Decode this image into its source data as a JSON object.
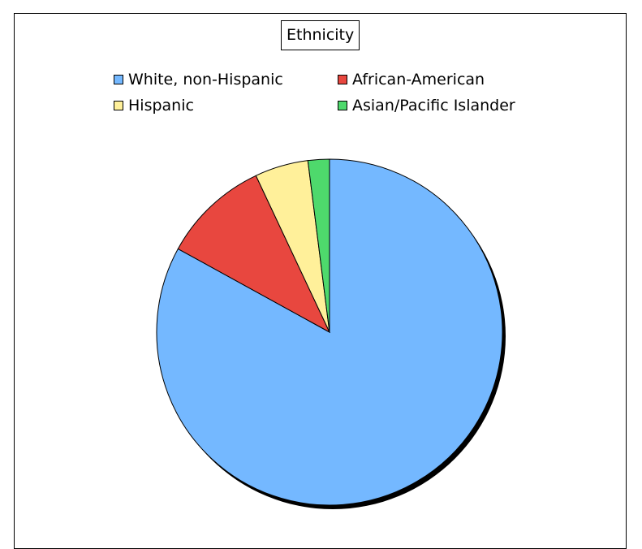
{
  "chart_data": {
    "type": "pie",
    "title": "Ethnicity",
    "categories": [
      "White, non-Hispanic",
      "African-American",
      "Hispanic",
      "Asian/Pacific Islander"
    ],
    "values": [
      83,
      10,
      5,
      2
    ],
    "colors": [
      "#74b8ff",
      "#e8473f",
      "#fff09a",
      "#4ed96c"
    ],
    "legend_position": "top"
  }
}
